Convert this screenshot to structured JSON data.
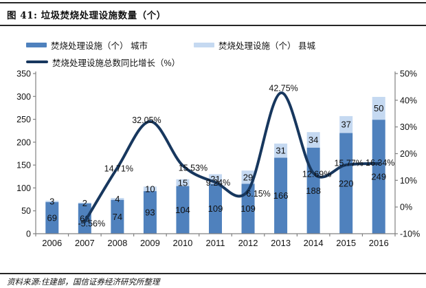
{
  "header": {
    "title": "图 41: 垃圾焚烧处理设施数量（个）"
  },
  "footer": {
    "source": "资料来源:住建部，国信证券经济研究所整理"
  },
  "legend": {
    "items": [
      {
        "label": "焚烧处理设施（个） 城市",
        "swatch": "bar",
        "color": "#4F81BD"
      },
      {
        "label": "焚烧处理设施（个） 县城",
        "swatch": "bar",
        "color": "#C5D9F1"
      },
      {
        "label": "焚烧处理设施总数同比增长（%）",
        "swatch": "line",
        "color": "#17375E"
      }
    ]
  },
  "chart_data": {
    "type": "bar",
    "subtype": "stacked-bars-with-line-dual-axis",
    "title": "垃圾焚烧处理设施数量（个）",
    "categories": [
      "2006",
      "2007",
      "2008",
      "2009",
      "2010",
      "2011",
      "2012",
      "2013",
      "2014",
      "2015",
      "2016"
    ],
    "series": [
      {
        "name": "焚烧处理设施（个） 城市",
        "type": "bar",
        "stack": "facilities",
        "axis": "left",
        "color": "#4F81BD",
        "values": [
          69,
          66,
          74,
          93,
          104,
          109,
          109,
          166,
          188,
          220,
          249
        ]
      },
      {
        "name": "焚烧处理设施（个） 县城",
        "type": "bar",
        "stack": "facilities",
        "axis": "left",
        "color": "#C5D9F1",
        "values": [
          3,
          2,
          4,
          10,
          15,
          21,
          29,
          31,
          34,
          37,
          50
        ]
      },
      {
        "name": "焚烧处理设施总数同比增长（%）",
        "type": "line",
        "axis": "right",
        "color": "#17375E",
        "values": [
          null,
          -5.56,
          14.71,
          32.05,
          15.53,
          9.24,
          6.15,
          42.75,
          12.69,
          15.77,
          16.34
        ],
        "point_labels": [
          null,
          "-5.56%",
          "14.71%",
          "32.05%",
          "15.53%",
          "9.24%",
          "6.15%",
          "42.75%",
          "12.69%",
          "15.77%",
          "16.34%"
        ],
        "label_offsets": [
          null,
          [
            10,
            2
          ],
          [
            2,
            1
          ],
          [
            -5,
            -2
          ],
          [
            15,
            3
          ],
          [
            4,
            0
          ],
          [
            15,
            4
          ],
          [
            4,
            -7
          ],
          [
            5,
            1
          ],
          [
            4,
            -3
          ],
          [
            2,
            -1
          ]
        ]
      }
    ],
    "left_axis": {
      "min": 0,
      "max": 350,
      "step": 50,
      "tick_labels": [
        "0",
        "50",
        "100",
        "150",
        "200",
        "250",
        "300",
        "350"
      ]
    },
    "right_axis": {
      "min": -10,
      "max": 50,
      "step": 10,
      "tick_labels": [
        "-10%",
        "0%",
        "10%",
        "20%",
        "30%",
        "40%",
        "50%"
      ]
    },
    "grid": false,
    "legend_position": "top",
    "bar_value_labels_visible": true,
    "axis_color": "#808080"
  }
}
